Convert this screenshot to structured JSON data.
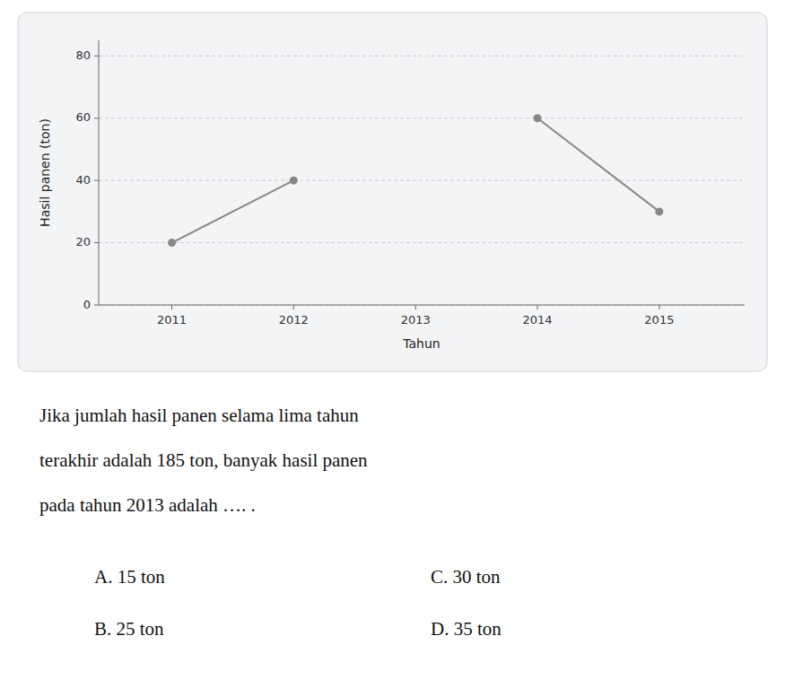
{
  "chart_data": {
    "type": "line",
    "xlabel": "Tahun",
    "ylabel": "Hasil panen (ton)",
    "x": [
      2011,
      2012,
      2013,
      2014,
      2015
    ],
    "series": [
      {
        "color": "#888888",
        "marker": "circle",
        "values": [
          20,
          40,
          null,
          60,
          30
        ]
      }
    ],
    "xlim": [
      2010.4,
      2015.7
    ],
    "xticks": [
      2011,
      2012,
      2013,
      2014,
      2015
    ],
    "ylim": [
      0,
      85
    ],
    "yticks": [
      0,
      20,
      40,
      60,
      80
    ],
    "grid": true,
    "annotations": {
      "question": [
        "Jika jumlah hasil panen selama lima tahun",
        "terakhir adalah 185 ton, banyak hasil panen",
        "pada tahun 2013 adalah …. ."
      ],
      "options": [
        "A.  15 ton",
        "B.  25 ton",
        "C.  30 ton",
        "D.  35 ton"
      ]
    }
  }
}
